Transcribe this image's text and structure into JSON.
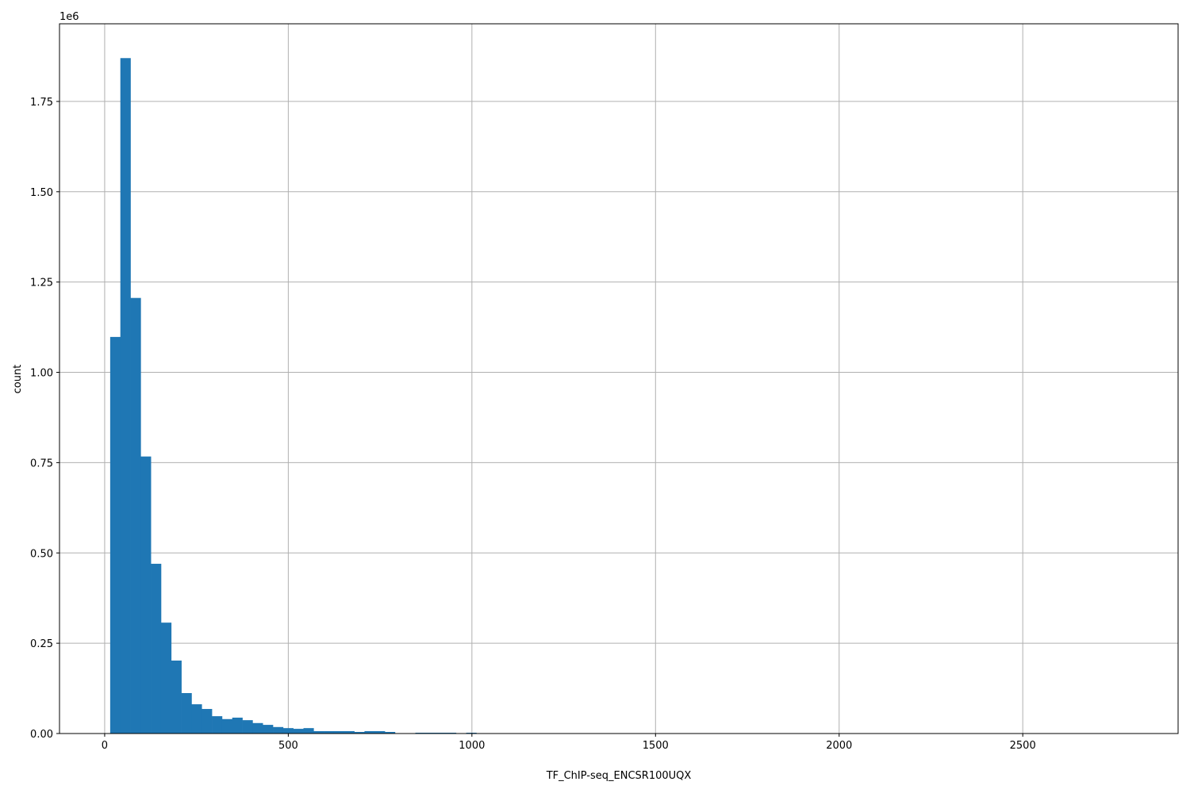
{
  "chart_data": {
    "type": "bar",
    "subtype": "histogram",
    "title": "",
    "xlabel": "TF_ChIP-seq_ENCSR100UQX",
    "ylabel": "count",
    "xlim": [
      -123,
      2923
    ],
    "ylim": [
      0,
      1965000
    ],
    "bin_range": [
      15,
      2785
    ],
    "bins": 100,
    "counts": [
      1098000,
      1870000,
      1206000,
      767000,
      470000,
      307000,
      202000,
      112000,
      81000,
      68000,
      48000,
      40000,
      44000,
      37000,
      29000,
      24000,
      18000,
      15000,
      13000,
      15000,
      6600,
      6600,
      6600,
      6600,
      4400,
      6600,
      6600,
      4400,
      0,
      0,
      2200,
      2200,
      2200,
      2200,
      0,
      2200,
      0,
      0,
      0,
      0,
      0,
      0,
      0,
      0,
      0,
      0,
      0,
      0,
      0,
      0,
      0,
      0,
      0,
      0,
      0,
      0,
      0,
      0,
      0,
      0,
      0,
      0,
      0,
      0,
      0,
      0,
      0,
      0,
      0,
      0,
      0,
      0,
      0,
      0,
      0,
      0,
      0,
      0,
      0,
      0,
      0,
      0,
      0,
      0,
      0,
      0,
      0,
      0,
      0,
      0,
      0,
      0,
      0,
      0,
      0,
      0,
      0,
      0,
      0,
      0
    ],
    "x_ticks": [
      0,
      500,
      1000,
      1500,
      2000,
      2500
    ],
    "x_tick_labels": [
      "0",
      "500",
      "1000",
      "1500",
      "2000",
      "2500"
    ],
    "y_ticks": [
      0,
      250000,
      500000,
      750000,
      1000000,
      1250000,
      1500000,
      1750000
    ],
    "y_tick_labels": [
      "0.00",
      "0.25",
      "0.50",
      "0.75",
      "1.00",
      "1.25",
      "1.50",
      "1.75"
    ],
    "y_offset_label": "1e6",
    "grid": true,
    "bar_color": "#1f77b4",
    "grid_color": "#b0b0b0"
  }
}
